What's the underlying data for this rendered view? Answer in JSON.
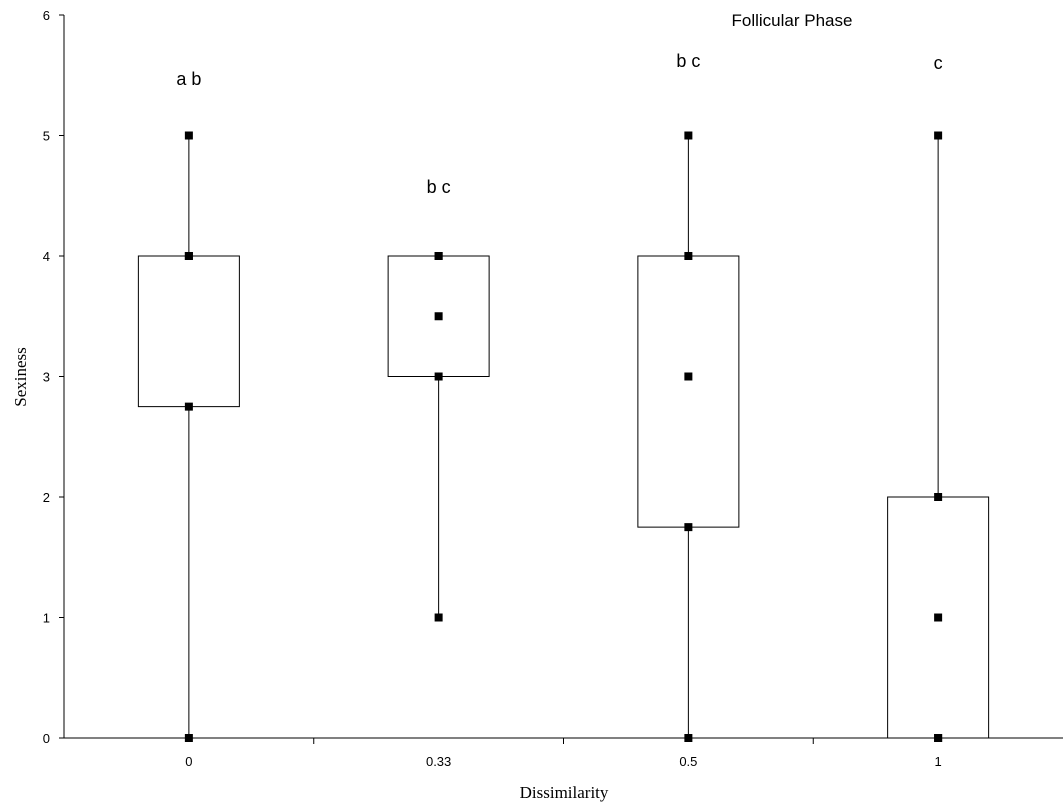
{
  "chart_data": {
    "type": "box",
    "title": "Follicular Phase",
    "xlabel": "Dissimilarity",
    "ylabel": "Sexiness",
    "ylim": [
      0,
      6
    ],
    "yticks": [
      "0",
      "1",
      "2",
      "3",
      "4",
      "5",
      "6"
    ],
    "grid": false,
    "categories": [
      "0",
      "0.33",
      "0.5",
      "1"
    ],
    "boxes": [
      {
        "category": "0",
        "min": 0,
        "q1": 2.75,
        "median": 4,
        "q3": 4,
        "max": 5,
        "group_label": "a b"
      },
      {
        "category": "0.33",
        "min": 1,
        "q1": 3,
        "median": 3.5,
        "q3": 4,
        "max": 4,
        "group_label": "b c"
      },
      {
        "category": "0.5",
        "min": 0,
        "q1": 1.75,
        "median": 3,
        "q3": 4,
        "max": 5,
        "group_label": "b c"
      },
      {
        "category": "1",
        "min": 0,
        "q1": 0,
        "median": 1,
        "q3": 2,
        "max": 5,
        "group_label": "c"
      }
    ]
  }
}
